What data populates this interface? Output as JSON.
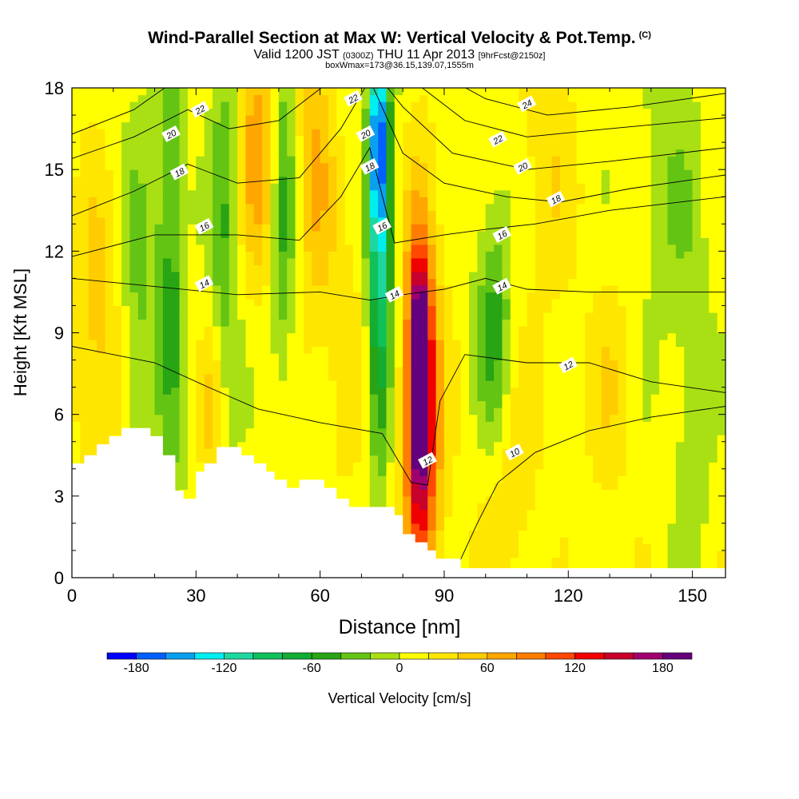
{
  "title": {
    "main": "Wind-Parallel Section at Max W: Vertical Velocity & Pot.Temp.",
    "copyright": "(C)",
    "valid_pre": "Valid 1200 JST",
    "valid_utc": "(0300Z)",
    "valid_date": "THU 11 Apr 2013",
    "forecast": "[9hrFcst@2150z]",
    "box": "boxWmax=173@36.15,139.07,1555m"
  },
  "chart_data": {
    "type": "heatmap",
    "xlabel": "Distance [nm]",
    "ylabel": "Height [Kft MSL]",
    "xlim": [
      0,
      158
    ],
    "ylim": [
      0,
      18
    ],
    "x_ticks": [
      0,
      30,
      60,
      90,
      120,
      150
    ],
    "y_ticks": [
      0,
      3,
      6,
      9,
      12,
      15,
      18
    ],
    "colorbar": {
      "label": "Vertical Velocity [cm/s]",
      "range": [
        -200,
        200
      ],
      "ticks": [
        -180,
        -120,
        -60,
        0,
        60,
        120,
        180
      ],
      "levels": [
        -200,
        -180,
        -160,
        -140,
        -120,
        -100,
        -80,
        -60,
        -40,
        -20,
        0,
        20,
        40,
        60,
        80,
        100,
        120,
        140,
        160,
        180,
        200
      ],
      "colors": [
        "#0000ff",
        "#0060ff",
        "#0aa0f0",
        "#00eeee",
        "#1dd6a0",
        "#10c05a",
        "#14ac32",
        "#28a414",
        "#64c414",
        "#a8e014",
        "#ffff00",
        "#ffe600",
        "#ffcc00",
        "#ffa600",
        "#ff7d00",
        "#ff4800",
        "#f00000",
        "#c8002c",
        "#a0006e",
        "#64007d"
      ]
    },
    "terrain_kft": [
      [
        0,
        4.2
      ],
      [
        3,
        4.2
      ],
      [
        3,
        4.5
      ],
      [
        6,
        4.5
      ],
      [
        6,
        4.9
      ],
      [
        9,
        4.9
      ],
      [
        9,
        5.2
      ],
      [
        12,
        5.2
      ],
      [
        12,
        5.5
      ],
      [
        19,
        5.5
      ],
      [
        19,
        5.2
      ],
      [
        22,
        5.2
      ],
      [
        22,
        4.5
      ],
      [
        25,
        4.5
      ],
      [
        25,
        3.2
      ],
      [
        27,
        3.2
      ],
      [
        27,
        2.9
      ],
      [
        30,
        2.9
      ],
      [
        30,
        3.9
      ],
      [
        32,
        3.9
      ],
      [
        32,
        4.2
      ],
      [
        35,
        4.2
      ],
      [
        35,
        4.8
      ],
      [
        41,
        4.8
      ],
      [
        41,
        4.5
      ],
      [
        44,
        4.5
      ],
      [
        44,
        4.2
      ],
      [
        47,
        4.2
      ],
      [
        47,
        3.9
      ],
      [
        49,
        3.9
      ],
      [
        49,
        3.6
      ],
      [
        52,
        3.6
      ],
      [
        52,
        3.3
      ],
      [
        55,
        3.3
      ],
      [
        55,
        3.6
      ],
      [
        61,
        3.6
      ],
      [
        61,
        3.3
      ],
      [
        64,
        3.3
      ],
      [
        64,
        2.9
      ],
      [
        67,
        2.9
      ],
      [
        67,
        2.6
      ],
      [
        78,
        2.6
      ],
      [
        78,
        2.3
      ],
      [
        80,
        2.3
      ],
      [
        80,
        1.6
      ],
      [
        83,
        1.6
      ],
      [
        83,
        1.3
      ],
      [
        86,
        1.3
      ],
      [
        86,
        1.0
      ],
      [
        88,
        1.0
      ],
      [
        88,
        0.7
      ],
      [
        94,
        0.7
      ],
      [
        94,
        0.35
      ],
      [
        158,
        0.35
      ]
    ],
    "w_cells": [
      {
        "x": 84,
        "y": 7.5,
        "sx": 1.2,
        "sy": 2.2,
        "w": 195
      },
      {
        "x": 84,
        "y": 7.0,
        "sx": 2.5,
        "sy": 4.0,
        "w": 110
      },
      {
        "x": 85,
        "y": 5.0,
        "sx": 3.5,
        "sy": 6.0,
        "w": 70
      },
      {
        "x": 74,
        "y": 16.5,
        "sx": 1.5,
        "sy": 2.5,
        "w": -130
      },
      {
        "x": 75,
        "y": 13.0,
        "sx": 2.3,
        "sy": 5.0,
        "w": -75
      },
      {
        "x": 74,
        "y": 9.0,
        "sx": 1.6,
        "sy": 4.0,
        "w": -55
      },
      {
        "x": 45,
        "y": 16.0,
        "sx": 3.5,
        "sy": 3.5,
        "w": 60
      },
      {
        "x": 59,
        "y": 15.0,
        "sx": 3.0,
        "sy": 4.0,
        "w": 50
      },
      {
        "x": 51,
        "y": 14.0,
        "sx": 2.0,
        "sy": 5.0,
        "w": -55
      },
      {
        "x": 24,
        "y": 13.0,
        "sx": 2.5,
        "sy": 7.0,
        "w": -60
      },
      {
        "x": 37,
        "y": 13.0,
        "sx": 2.5,
        "sy": 5.0,
        "w": -50
      },
      {
        "x": 6,
        "y": 9.0,
        "sx": 4.0,
        "sy": 4.0,
        "w": 40
      },
      {
        "x": 34,
        "y": 6.0,
        "sx": 2.0,
        "sy": 2.5,
        "w": 35
      },
      {
        "x": 102,
        "y": 9.0,
        "sx": 3.0,
        "sy": 3.5,
        "w": -60
      },
      {
        "x": 105,
        "y": 3.5,
        "sx": 5.0,
        "sy": 3.0,
        "w": 30
      },
      {
        "x": 115,
        "y": 15.0,
        "sx": 5.0,
        "sy": 4.0,
        "w": 25
      },
      {
        "x": 130,
        "y": 7.0,
        "sx": 4.0,
        "sy": 3.0,
        "w": 25
      },
      {
        "x": 150,
        "y": 5.0,
        "sx": 3.0,
        "sy": 4.0,
        "w": -25
      },
      {
        "x": 16,
        "y": 10.0,
        "sx": 3.0,
        "sy": 5.0,
        "w": -35
      },
      {
        "x": 145,
        "y": 14.0,
        "sx": 6.0,
        "sy": 4.0,
        "w": -25
      },
      {
        "x": 66,
        "y": 8.0,
        "sx": 3.0,
        "sy": 3.0,
        "w": 30
      }
    ],
    "theta_contours": [
      {
        "label": "10",
        "points": [
          [
            93,
            0.35
          ],
          [
            98,
            2.0
          ],
          [
            103,
            3.5
          ],
          [
            112,
            4.6
          ],
          [
            125,
            5.4
          ],
          [
            140,
            5.9
          ],
          [
            158,
            6.3
          ]
        ]
      },
      {
        "label": "12",
        "points": [
          [
            0,
            8.5
          ],
          [
            20,
            7.9
          ],
          [
            33,
            7.0
          ],
          [
            45,
            6.2
          ],
          [
            60,
            5.7
          ],
          [
            75,
            5.3
          ],
          [
            82,
            3.5
          ],
          [
            86,
            3.4
          ],
          [
            89,
            6.5
          ],
          [
            95,
            8.2
          ],
          [
            110,
            7.9
          ],
          [
            125,
            7.9
          ],
          [
            140,
            7.2
          ],
          [
            158,
            6.8
          ]
        ]
      },
      {
        "label": "14",
        "points": [
          [
            0,
            11.0
          ],
          [
            20,
            10.7
          ],
          [
            40,
            10.4
          ],
          [
            60,
            10.5
          ],
          [
            72,
            10.2
          ],
          [
            80,
            10.4
          ],
          [
            90,
            10.6
          ],
          [
            100,
            11.0
          ],
          [
            110,
            10.6
          ],
          [
            125,
            10.5
          ],
          [
            140,
            10.5
          ],
          [
            158,
            10.5
          ]
        ]
      },
      {
        "label": "16",
        "points": [
          [
            0,
            11.8
          ],
          [
            20,
            12.6
          ],
          [
            40,
            12.6
          ],
          [
            55,
            12.4
          ],
          [
            65,
            14.0
          ],
          [
            72,
            15.8
          ],
          [
            78,
            12.3
          ],
          [
            90,
            12.6
          ],
          [
            100,
            12.8
          ],
          [
            112,
            13.0
          ],
          [
            130,
            13.5
          ],
          [
            158,
            14.0
          ]
        ]
      },
      {
        "label": "18",
        "points": [
          [
            0,
            13.3
          ],
          [
            15,
            14.2
          ],
          [
            28,
            15.2
          ],
          [
            40,
            14.5
          ],
          [
            55,
            14.7
          ],
          [
            65,
            16.5
          ],
          [
            72,
            18.3
          ],
          [
            80,
            15.6
          ],
          [
            90,
            14.5
          ],
          [
            105,
            14.0
          ],
          [
            118,
            13.8
          ],
          [
            135,
            14.3
          ],
          [
            158,
            14.8
          ]
        ]
      },
      {
        "label": "20",
        "points": [
          [
            0,
            15.4
          ],
          [
            15,
            16.2
          ],
          [
            28,
            17.2
          ],
          [
            38,
            16.5
          ],
          [
            50,
            16.8
          ],
          [
            62,
            18.2
          ],
          [
            70,
            19.2
          ],
          [
            80,
            17.3
          ],
          [
            92,
            15.6
          ],
          [
            110,
            15.0
          ],
          [
            130,
            15.3
          ],
          [
            158,
            15.8
          ]
        ]
      },
      {
        "label": "22",
        "points": [
          [
            0,
            16.3
          ],
          [
            15,
            17.2
          ],
          [
            28,
            18.6
          ],
          [
            45,
            18.6
          ],
          [
            70,
            18.6
          ],
          [
            83,
            18.2
          ],
          [
            95,
            16.8
          ],
          [
            110,
            16.2
          ],
          [
            130,
            16.5
          ],
          [
            158,
            16.9
          ]
        ]
      },
      {
        "label": "24",
        "points": [
          [
            88,
            18.6
          ],
          [
            100,
            17.6
          ],
          [
            115,
            17.0
          ],
          [
            135,
            17.3
          ],
          [
            158,
            17.8
          ]
        ]
      }
    ],
    "theta_labels": [
      {
        "text": "24",
        "x": 110,
        "y": 17.4
      },
      {
        "text": "22",
        "x": 31,
        "y": 17.2
      },
      {
        "text": "22",
        "x": 68,
        "y": 17.6
      },
      {
        "text": "22",
        "x": 103,
        "y": 16.1
      },
      {
        "text": "20",
        "x": 24,
        "y": 16.3
      },
      {
        "text": "20",
        "x": 71,
        "y": 16.3
      },
      {
        "text": "20",
        "x": 109,
        "y": 15.1
      },
      {
        "text": "18",
        "x": 26,
        "y": 14.9
      },
      {
        "text": "18",
        "x": 72,
        "y": 15.1
      },
      {
        "text": "18",
        "x": 117,
        "y": 13.9
      },
      {
        "text": "16",
        "x": 32,
        "y": 12.9
      },
      {
        "text": "16",
        "x": 75,
        "y": 12.9
      },
      {
        "text": "16",
        "x": 104,
        "y": 12.6
      },
      {
        "text": "14",
        "x": 32,
        "y": 10.8
      },
      {
        "text": "14",
        "x": 78,
        "y": 10.4
      },
      {
        "text": "14",
        "x": 104,
        "y": 10.7
      },
      {
        "text": "12",
        "x": 120,
        "y": 7.8
      },
      {
        "text": "12",
        "x": 86,
        "y": 4.3
      },
      {
        "text": "10",
        "x": 107,
        "y": 4.6
      }
    ]
  }
}
